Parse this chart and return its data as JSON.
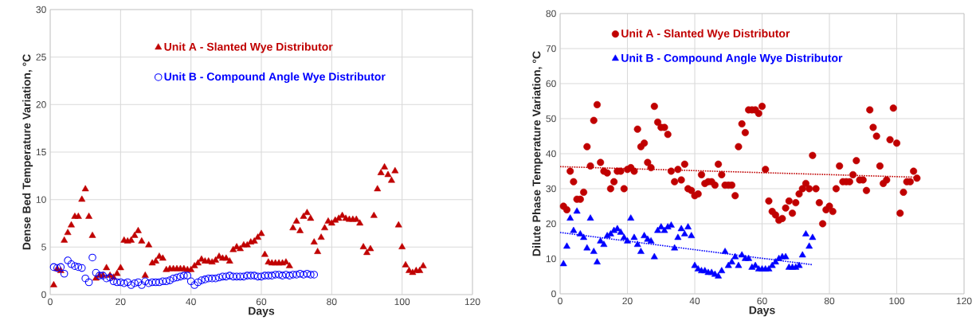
{
  "chart_data": [
    {
      "type": "scatter",
      "xlabel": "Days",
      "ylabel": "Dense Bed Temperature Variation, °C",
      "xlim": [
        0,
        120
      ],
      "xticks": [
        0,
        20,
        40,
        60,
        80,
        100,
        120
      ],
      "ylim": [
        0,
        30
      ],
      "yticks": [
        0,
        5,
        10,
        15,
        20,
        25,
        30
      ],
      "grid": true,
      "legend": "top",
      "series": [
        {
          "name": "Unit A - Slanted Wye Distributor",
          "color": "#c00000",
          "marker": "triangle",
          "x": [
            1,
            2,
            3,
            4,
            5,
            6,
            7,
            8,
            9,
            10,
            11,
            12,
            13,
            14,
            15,
            16,
            17,
            18,
            19,
            20,
            21,
            22,
            23,
            24,
            25,
            26,
            27,
            28,
            29,
            30,
            31,
            32,
            33,
            34,
            35,
            36,
            37,
            38,
            39,
            40,
            41,
            42,
            43,
            44,
            45,
            46,
            47,
            48,
            49,
            50,
            51,
            52,
            53,
            54,
            55,
            56,
            57,
            58,
            59,
            60,
            61,
            62,
            63,
            64,
            65,
            66,
            67,
            68,
            69,
            70,
            71,
            72,
            73,
            74,
            75,
            76,
            77,
            78,
            79,
            80,
            81,
            82,
            83,
            84,
            85,
            86,
            87,
            88,
            89,
            90,
            91,
            92,
            93,
            94,
            95,
            96,
            97,
            98,
            99,
            100,
            101,
            102,
            103,
            104,
            105,
            106
          ],
          "values": [
            1.0,
            2.7,
            2.5,
            5.7,
            6.5,
            7.3,
            8.2,
            8.2,
            10,
            11.1,
            8.2,
            6.2,
            1.7,
            2.0,
            2.0,
            2.8,
            2.0,
            1.8,
            2.2,
            2.8,
            5.7,
            5.6,
            5.7,
            6.2,
            6.7,
            5.6,
            2.0,
            5.2,
            3.3,
            3.5,
            4.0,
            3.8,
            2.6,
            2.7,
            2.7,
            2.7,
            2.7,
            2.7,
            2.6,
            2.6,
            3.0,
            3.3,
            3.7,
            3.5,
            3.5,
            3.4,
            3.6,
            4.0,
            3.8,
            3.8,
            3.5,
            4.7,
            5.0,
            4.8,
            5.2,
            5.2,
            5.5,
            5.6,
            6.0,
            6.4,
            4.2,
            3.4,
            3.3,
            3.3,
            3.3,
            3.3,
            3.4,
            3.0,
            7.0,
            7.7,
            6.7,
            8.2,
            8.6,
            8.0,
            5.5,
            4.5,
            6.0,
            7.0,
            7.7,
            7.5,
            7.8,
            8.0,
            8.3,
            8.0,
            7.9,
            7.9,
            7.9,
            7.5,
            5.0,
            4.4,
            4.8,
            8.3,
            11.1,
            12.8,
            13.4,
            12.6,
            12.0,
            13.0,
            7.3,
            5.0,
            3.1,
            2.5,
            2.3,
            2.5,
            2.5,
            3.0
          ]
        },
        {
          "name": "Unit B - Compound Angle Wye Distributor",
          "color": "#0000ff",
          "marker": "open circle",
          "x": [
            1,
            2,
            3,
            4,
            5,
            6,
            7,
            8,
            9,
            10,
            11,
            12,
            13,
            14,
            15,
            16,
            17,
            18,
            19,
            20,
            21,
            22,
            23,
            24,
            25,
            26,
            27,
            28,
            29,
            30,
            31,
            32,
            33,
            34,
            35,
            36,
            37,
            38,
            39,
            40,
            41,
            42,
            43,
            44,
            45,
            46,
            47,
            48,
            49,
            50,
            51,
            52,
            53,
            54,
            55,
            56,
            57,
            58,
            59,
            60,
            61,
            62,
            63,
            64,
            65,
            66,
            67,
            68,
            69,
            70,
            71,
            72,
            73,
            74,
            75
          ],
          "values": [
            2.9,
            2.8,
            2.9,
            2.2,
            3.6,
            3.2,
            3.0,
            2.9,
            2.8,
            1.7,
            1.3,
            3.9,
            2.3,
            2.0,
            2.0,
            1.7,
            1.8,
            1.4,
            1.3,
            1.3,
            1.2,
            1.3,
            1.0,
            1.2,
            1.3,
            1.0,
            1.4,
            1.2,
            1.3,
            1.3,
            1.3,
            1.4,
            1.4,
            1.5,
            1.7,
            1.8,
            1.9,
            2.0,
            2.0,
            1.4,
            1.0,
            1.3,
            1.5,
            1.6,
            1.7,
            1.7,
            1.7,
            1.8,
            1.9,
            1.9,
            2.0,
            1.9,
            1.9,
            1.9,
            1.9,
            2.0,
            2.0,
            2.0,
            1.9,
            1.9,
            2.0,
            2.0,
            2.0,
            2.1,
            2.1,
            2.0,
            2.1,
            2.0,
            2.1,
            2.1,
            2.2,
            2.1,
            2.2,
            2.1,
            2.1
          ]
        }
      ]
    },
    {
      "type": "scatter",
      "xlabel": "Days",
      "ylabel": "Dilute Phase Temperature Variation, °C",
      "xlim": [
        0,
        120
      ],
      "xticks": [
        0,
        20,
        40,
        60,
        80,
        100,
        120
      ],
      "ylim": [
        0,
        80
      ],
      "yticks": [
        0,
        10,
        20,
        30,
        40,
        50,
        60,
        70,
        80
      ],
      "grid": true,
      "legend": "top",
      "series": [
        {
          "name": "Unit A - Slanted Wye Distributor",
          "color": "#c00000",
          "marker": "circle",
          "x": [
            1,
            2,
            3,
            4,
            5,
            6,
            7,
            8,
            9,
            10,
            11,
            12,
            13,
            14,
            15,
            16,
            17,
            18,
            19,
            20,
            21,
            22,
            23,
            24,
            25,
            26,
            27,
            28,
            29,
            30,
            31,
            32,
            33,
            34,
            35,
            36,
            37,
            38,
            39,
            40,
            41,
            42,
            43,
            44,
            45,
            46,
            47,
            48,
            49,
            50,
            51,
            52,
            53,
            54,
            55,
            56,
            57,
            58,
            59,
            60,
            61,
            62,
            63,
            64,
            65,
            66,
            67,
            68,
            69,
            70,
            71,
            72,
            73,
            74,
            75,
            76,
            77,
            78,
            79,
            80,
            81,
            82,
            83,
            84,
            85,
            86,
            87,
            88,
            89,
            90,
            91,
            92,
            93,
            94,
            95,
            96,
            97,
            98,
            99,
            100,
            101,
            102,
            103,
            104,
            105,
            106
          ],
          "values": [
            25,
            24,
            35,
            32,
            27,
            27,
            29,
            42,
            36.5,
            49.5,
            54,
            37.5,
            35,
            34.5,
            30,
            32,
            35,
            35,
            30,
            35.5,
            36,
            35,
            47,
            42,
            43,
            37.5,
            36,
            53.5,
            49,
            47.5,
            47.5,
            45.5,
            35,
            32,
            35.5,
            32.5,
            37,
            30,
            29.5,
            28,
            28.5,
            34,
            31.5,
            32,
            32,
            31,
            37,
            34,
            31,
            31,
            31,
            28,
            42,
            48.5,
            46,
            52.5,
            52.5,
            52.5,
            51.5,
            53.5,
            35.5,
            26.5,
            23.5,
            22.5,
            21,
            21.5,
            24.5,
            26.5,
            23,
            26,
            28.5,
            30,
            31.5,
            30,
            39.5,
            30,
            26,
            20,
            24,
            25,
            23.5,
            30,
            36.5,
            32,
            32,
            32,
            34,
            38,
            32.5,
            32.5,
            29.5,
            52.5,
            47.5,
            45,
            36.5,
            31.5,
            32.5,
            44,
            53,
            43,
            23,
            29,
            32,
            32,
            35,
            33
          ]
        },
        {
          "name": "Unit B - Compound Angle Wye Distributor",
          "color": "#0000ff",
          "marker": "triangle",
          "x": [
            1,
            2,
            3,
            4,
            5,
            6,
            7,
            8,
            9,
            10,
            11,
            12,
            13,
            14,
            15,
            16,
            17,
            18,
            19,
            20,
            21,
            22,
            23,
            24,
            25,
            26,
            27,
            28,
            29,
            30,
            31,
            32,
            33,
            34,
            35,
            36,
            37,
            38,
            39,
            40,
            41,
            42,
            43,
            44,
            45,
            46,
            47,
            48,
            49,
            50,
            51,
            52,
            53,
            54,
            55,
            56,
            57,
            58,
            59,
            60,
            61,
            62,
            63,
            64,
            65,
            66,
            67,
            68,
            69,
            70,
            71,
            72,
            73,
            74,
            75
          ],
          "values": [
            8.5,
            13.5,
            21.5,
            18,
            23.5,
            17,
            16,
            13,
            21.5,
            12,
            9,
            15,
            14,
            16.5,
            17,
            18,
            18.5,
            17.5,
            16,
            15,
            21.5,
            16,
            14,
            12,
            16.5,
            15.5,
            15,
            10.5,
            18,
            19,
            18,
            19,
            19.5,
            13,
            16,
            18.5,
            17,
            19,
            16.5,
            8,
            7,
            6.5,
            6.5,
            6,
            6,
            5.5,
            5,
            6.5,
            12,
            8,
            9,
            10.5,
            8,
            11,
            10,
            10,
            7.5,
            8,
            7,
            7,
            7,
            7,
            8,
            9,
            10,
            10.5,
            10.5,
            7.5,
            7.5,
            7.5,
            8,
            11,
            17,
            13.5,
            16
          ]
        },
        {
          "type": "line",
          "color": "#c00000",
          "line_style": "dotted",
          "x": [
            0,
            105
          ],
          "values": [
            36.3,
            33.3
          ]
        },
        {
          "type": "line",
          "color": "#0000ff",
          "line_style": "dotted",
          "x": [
            0,
            75
          ],
          "values": [
            17.5,
            8.3
          ]
        }
      ]
    }
  ]
}
